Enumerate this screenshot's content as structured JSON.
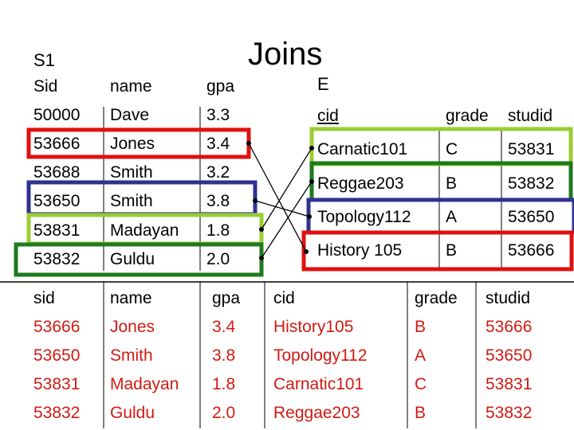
{
  "title": "Joins",
  "s1": {
    "label": "S1",
    "headers": [
      "Sid",
      "name",
      "gpa"
    ],
    "rows": [
      [
        "50000",
        "Dave",
        "3.3"
      ],
      [
        "53666",
        "Jones",
        "3.4"
      ],
      [
        "53688",
        "Smith",
        "3.2"
      ],
      [
        "53650",
        "Smith",
        "3.8"
      ],
      [
        "53831",
        "Madayan",
        "1.8"
      ],
      [
        "53832",
        "Guldu",
        "2.0"
      ]
    ]
  },
  "e": {
    "label": "E",
    "headers": [
      "cid",
      "grade",
      "studid"
    ],
    "rows": [
      [
        "Carnatic101",
        "C",
        "53831"
      ],
      [
        "Reggae203",
        "B",
        "53832"
      ],
      [
        "Topology112",
        "A",
        "53650"
      ],
      [
        "History 105",
        "B",
        "53666"
      ]
    ]
  },
  "result": {
    "headers": [
      "sid",
      "name",
      "gpa",
      "cid",
      "grade",
      "studid"
    ],
    "rows": [
      [
        "53666",
        "Jones",
        "3.4",
        "History105",
        "B",
        "53666"
      ],
      [
        "53650",
        "Smith",
        "3.8",
        "Topology112",
        "A",
        "53650"
      ],
      [
        "53831",
        "Madayan",
        "1.8",
        "Carnatic101",
        "C",
        "53831"
      ],
      [
        "53832",
        "Guldu",
        "2.0",
        "Reggae203",
        "B",
        "53832"
      ]
    ]
  },
  "colors": {
    "red": "#e0100e",
    "blue": "#2f3192",
    "lime": "#9acd32",
    "green": "#1e7a1e",
    "result_text": "#d11a12"
  }
}
